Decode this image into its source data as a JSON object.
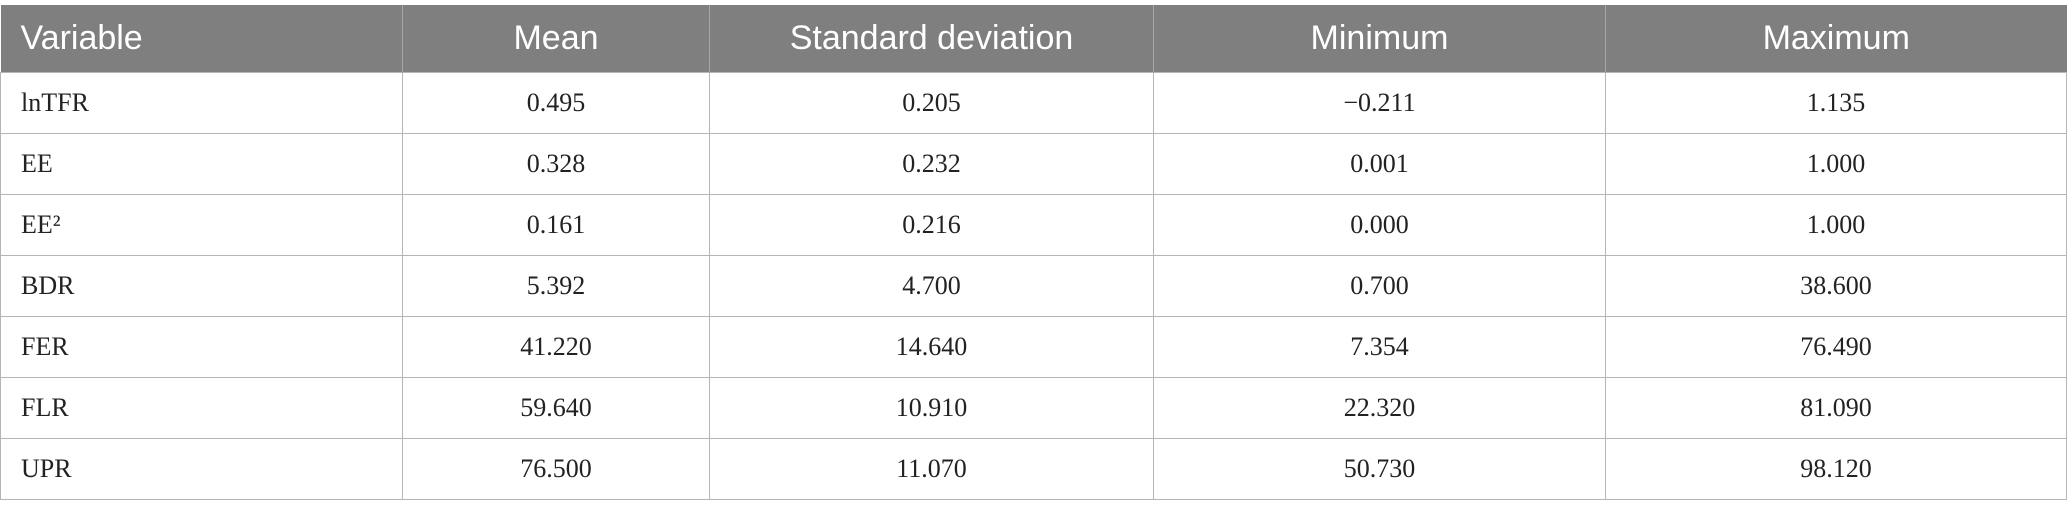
{
  "table": {
    "header": [
      "Variable",
      "Mean",
      "Standard deviation",
      "Minimum",
      "Maximum"
    ],
    "rows": [
      [
        "lnTFR",
        "0.495",
        "0.205",
        "−0.211",
        "1.135"
      ],
      [
        "EE",
        "0.328",
        "0.232",
        "0.001",
        "1.000"
      ],
      [
        "EE²",
        "0.161",
        "0.216",
        "0.000",
        "1.000"
      ],
      [
        "BDR",
        "5.392",
        "4.700",
        "0.700",
        "38.600"
      ],
      [
        "FER",
        "41.220",
        "14.640",
        "7.354",
        "76.490"
      ],
      [
        "FLR",
        "59.640",
        "10.910",
        "22.320",
        "81.090"
      ],
      [
        "UPR",
        "76.500",
        "11.070",
        "50.730",
        "98.120"
      ]
    ]
  }
}
